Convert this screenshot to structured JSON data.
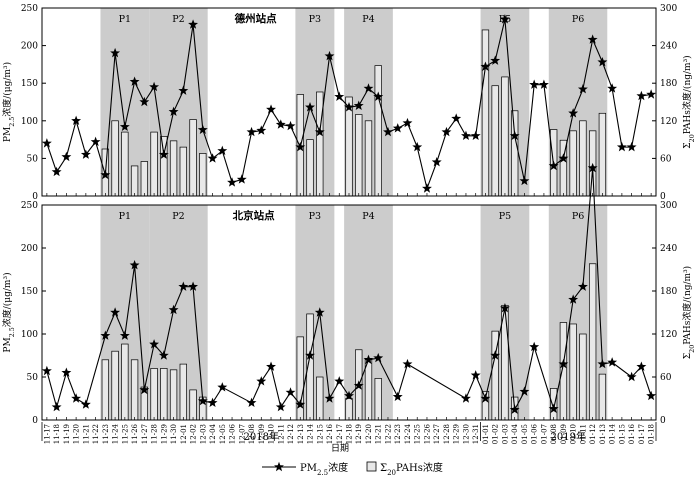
{
  "chart_data": [
    {
      "type": "bar+line",
      "station": "德州站点",
      "ylabel_left": "PM2.5浓度/(μg/m³)",
      "ylabel_right": "Σ20PAHs浓度/(ng/m³)",
      "ylim_left": [
        0,
        250
      ],
      "ylim_right": [
        0,
        300
      ],
      "yticks_left": [
        "0",
        "50",
        "100",
        "150",
        "200",
        "250"
      ],
      "yticks_right": [
        "0",
        "60",
        "120",
        "180",
        "240",
        "300"
      ],
      "periods": [
        {
          "label": "P1",
          "start": "11-23",
          "end": "11-27"
        },
        {
          "label": "P2",
          "start": "11-28",
          "end": "12-03"
        },
        {
          "label": "P3",
          "start": "12-13",
          "end": "12-16"
        },
        {
          "label": "P4",
          "start": "12-18",
          "end": "12-22"
        },
        {
          "label": "P5",
          "start": "01-01",
          "end": "01-05"
        },
        {
          "label": "P6",
          "start": "01-08",
          "end": "01-13"
        }
      ],
      "pm25": [
        [
          "11-17",
          70
        ],
        [
          "11-18",
          32
        ],
        [
          "11-19",
          52
        ],
        [
          "11-20",
          100
        ],
        [
          "11-21",
          55
        ],
        [
          "11-22",
          72
        ],
        [
          "11-23",
          28
        ],
        [
          "11-24",
          190
        ],
        [
          "11-25",
          92
        ],
        [
          "11-26",
          152
        ],
        [
          "11-27",
          125
        ],
        [
          "11-28",
          145
        ],
        [
          "11-29",
          55
        ],
        [
          "11-30",
          112
        ],
        [
          "12-01",
          140
        ],
        [
          "12-02",
          228
        ],
        [
          "12-03",
          88
        ],
        [
          "12-04",
          50
        ],
        [
          "12-05",
          60
        ],
        [
          "12-06",
          18
        ],
        [
          "12-07",
          22
        ],
        [
          "12-08",
          85
        ],
        [
          "12-09",
          87
        ],
        [
          "12-10",
          115
        ],
        [
          "12-11",
          95
        ],
        [
          "12-12",
          93
        ],
        [
          "12-13",
          65
        ],
        [
          "12-14",
          118
        ],
        [
          "12-15",
          85
        ],
        [
          "12-16",
          186
        ],
        [
          "12-17",
          132
        ],
        [
          "12-18",
          118
        ],
        [
          "12-19",
          120
        ],
        [
          "12-20",
          143
        ],
        [
          "12-21",
          132
        ],
        [
          "12-22",
          85
        ],
        [
          "12-23",
          90
        ],
        [
          "12-24",
          97
        ],
        [
          "12-25",
          65
        ],
        [
          "12-26",
          10
        ],
        [
          "12-27",
          45
        ],
        [
          "12-28",
          85
        ],
        [
          "12-29",
          103
        ],
        [
          "12-30",
          80
        ],
        [
          "12-31",
          80
        ],
        [
          "01-01",
          172
        ],
        [
          "01-02",
          180
        ],
        [
          "01-03",
          235
        ],
        [
          "01-04",
          80
        ],
        [
          "01-05",
          20
        ],
        [
          "01-06",
          148
        ],
        [
          "01-07",
          148
        ],
        [
          "01-08",
          40
        ],
        [
          "01-09",
          50
        ],
        [
          "01-10",
          110
        ],
        [
          "01-11",
          142
        ],
        [
          "01-12",
          208
        ],
        [
          "01-13",
          178
        ],
        [
          "01-14",
          143
        ],
        [
          "01-15",
          65
        ],
        [
          "01-16",
          65
        ],
        [
          "01-17",
          133
        ],
        [
          "01-18",
          135
        ]
      ],
      "pahs": [
        [
          "11-23",
          75
        ],
        [
          "11-24",
          120
        ],
        [
          "11-25",
          102
        ],
        [
          "11-26",
          48
        ],
        [
          "11-27",
          55
        ],
        [
          "11-28",
          102
        ],
        [
          "11-29",
          95
        ],
        [
          "11-30",
          88
        ],
        [
          "12-01",
          78
        ],
        [
          "12-02",
          122
        ],
        [
          "12-03",
          68
        ],
        [
          "12-13",
          162
        ],
        [
          "12-14",
          90
        ],
        [
          "12-15",
          166
        ],
        [
          "12-18",
          158
        ],
        [
          "12-19",
          130
        ],
        [
          "12-20",
          120
        ],
        [
          "12-21",
          208
        ],
        [
          "01-01",
          265
        ],
        [
          "01-02",
          176
        ],
        [
          "01-03",
          190
        ],
        [
          "01-04",
          136
        ],
        [
          "01-08",
          106
        ],
        [
          "01-09",
          89
        ],
        [
          "01-10",
          104
        ],
        [
          "01-11",
          120
        ],
        [
          "01-12",
          104
        ],
        [
          "01-13",
          132
        ]
      ]
    },
    {
      "type": "bar+line",
      "station": "北京站点",
      "ylabel_left": "PM2.5浓度/(μg/m³)",
      "ylabel_right": "Σ20PAHs浓度/(ng/m³)",
      "ylim_left": [
        0,
        250
      ],
      "ylim_right": [
        0,
        300
      ],
      "yticks_left": [
        "0",
        "50",
        "100",
        "150",
        "200",
        "250"
      ],
      "yticks_right": [
        "0",
        "60",
        "120",
        "180",
        "240",
        "300"
      ],
      "periods": [
        {
          "label": "P1",
          "start": "11-23",
          "end": "11-27"
        },
        {
          "label": "P2",
          "start": "11-28",
          "end": "12-03"
        },
        {
          "label": "P3",
          "start": "12-13",
          "end": "12-16"
        },
        {
          "label": "P4",
          "start": "12-18",
          "end": "12-22"
        },
        {
          "label": "P5",
          "start": "01-01",
          "end": "01-05"
        },
        {
          "label": "P6",
          "start": "01-08",
          "end": "01-13"
        }
      ],
      "pm25": [
        [
          "11-17",
          57
        ],
        [
          "11-18",
          15
        ],
        [
          "11-19",
          55
        ],
        [
          "11-20",
          25
        ],
        [
          "11-21",
          18
        ],
        [
          "11-23",
          98
        ],
        [
          "11-24",
          125
        ],
        [
          "11-25",
          98
        ],
        [
          "11-26",
          180
        ],
        [
          "11-27",
          35
        ],
        [
          "11-28",
          88
        ],
        [
          "11-29",
          75
        ],
        [
          "11-30",
          128
        ],
        [
          "12-01",
          155
        ],
        [
          "12-02",
          155
        ],
        [
          "12-03",
          22
        ],
        [
          "12-04",
          20
        ],
        [
          "12-05",
          38
        ],
        [
          "12-08",
          20
        ],
        [
          "12-09",
          45
        ],
        [
          "12-10",
          62
        ],
        [
          "12-11",
          15
        ],
        [
          "12-12",
          32
        ],
        [
          "12-13",
          18
        ],
        [
          "12-14",
          75
        ],
        [
          "12-15",
          125
        ],
        [
          "12-16",
          25
        ],
        [
          "12-17",
          45
        ],
        [
          "12-18",
          28
        ],
        [
          "12-19",
          40
        ],
        [
          "12-20",
          70
        ],
        [
          "12-21",
          72
        ],
        [
          "12-23",
          27
        ],
        [
          "12-24",
          65
        ],
        [
          "12-30",
          25
        ],
        [
          "12-31",
          52
        ],
        [
          "01-01",
          25
        ],
        [
          "01-02",
          75
        ],
        [
          "01-03",
          130
        ],
        [
          "01-04",
          12
        ],
        [
          "01-05",
          33
        ],
        [
          "01-06",
          85
        ],
        [
          "01-08",
          13
        ],
        [
          "01-09",
          65
        ],
        [
          "01-10",
          140
        ],
        [
          "01-11",
          155
        ],
        [
          "01-12",
          293
        ],
        [
          "01-13",
          65
        ],
        [
          "01-14",
          67
        ],
        [
          "01-16",
          50
        ],
        [
          "01-17",
          62
        ],
        [
          "01-18",
          28
        ]
      ],
      "pahs": [
        [
          "11-23",
          84
        ],
        [
          "11-24",
          96
        ],
        [
          "11-25",
          106
        ],
        [
          "11-26",
          84
        ],
        [
          "11-27",
          46
        ],
        [
          "11-28",
          72
        ],
        [
          "11-29",
          72
        ],
        [
          "11-30",
          70
        ],
        [
          "12-01",
          78
        ],
        [
          "12-02",
          42
        ],
        [
          "12-03",
          32
        ],
        [
          "12-13",
          116
        ],
        [
          "12-14",
          148
        ],
        [
          "12-15",
          60
        ],
        [
          "12-18",
          30
        ],
        [
          "12-19",
          98
        ],
        [
          "12-20",
          86
        ],
        [
          "12-21",
          58
        ],
        [
          "01-01",
          40
        ],
        [
          "01-02",
          124
        ],
        [
          "01-03",
          160
        ],
        [
          "01-04",
          32
        ],
        [
          "01-08",
          44
        ],
        [
          "01-09",
          136
        ],
        [
          "01-10",
          134
        ],
        [
          "01-11",
          120
        ],
        [
          "01-12",
          218
        ],
        [
          "01-13",
          64
        ]
      ]
    }
  ],
  "x_axis": {
    "title": "日期",
    "ticks": [
      "11-17",
      "11-18",
      "11-19",
      "11-20",
      "11-21",
      "11-22",
      "11-23",
      "11-24",
      "11-25",
      "11-26",
      "11-27",
      "11-28",
      "11-29",
      "11-30",
      "12-01",
      "12-02",
      "12-03",
      "12-04",
      "12-05",
      "12-06",
      "12-07",
      "12-08",
      "12-09",
      "12-10",
      "12-11",
      "12-12",
      "12-13",
      "12-14",
      "12-15",
      "12-16",
      "12-17",
      "12-18",
      "12-19",
      "12-20",
      "12-21",
      "12-22",
      "12-23",
      "12-24",
      "12-25",
      "12-26",
      "12-27",
      "12-28",
      "12-29",
      "12-30",
      "12-31",
      "01-01",
      "01-02",
      "01-03",
      "01-04",
      "01-05",
      "01-06",
      "01-07",
      "01-08",
      "01-09",
      "01-10",
      "01-11",
      "01-12",
      "01-13",
      "01-14",
      "01-15",
      "01-16",
      "01-17",
      "01-18"
    ],
    "year_labels": [
      "2018年",
      "2019年"
    ]
  },
  "legend": {
    "pm25_label": "PM2.5浓度",
    "pahs_label": "Σ20PAHs浓度"
  },
  "colors": {
    "shade": "#cccccc",
    "bar_fill": "#e8e8e8",
    "line": "#000000"
  }
}
